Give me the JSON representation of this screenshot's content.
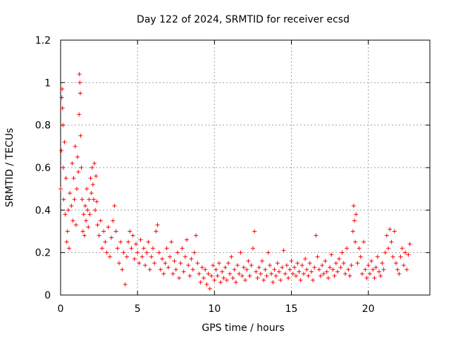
{
  "chart_data": {
    "type": "scatter",
    "title": "Day 122 of 2024, SRMTID for receiver ecsd",
    "xlabel": "GPS time / hours",
    "ylabel": "SRMTID / TECUs",
    "xlim": [
      0,
      24
    ],
    "ylim": [
      0,
      1.2
    ],
    "xticks": [
      {
        "value": 0,
        "label": "0"
      },
      {
        "value": 5,
        "label": "5"
      },
      {
        "value": 10,
        "label": "10"
      },
      {
        "value": 15,
        "label": "15"
      },
      {
        "value": 20,
        "label": "20"
      }
    ],
    "yticks": [
      {
        "value": 0,
        "label": "0"
      },
      {
        "value": 0.2,
        "label": "0.2"
      },
      {
        "value": 0.4,
        "label": "0.4"
      },
      {
        "value": 0.6,
        "label": "0.6"
      },
      {
        "value": 0.8,
        "label": "0.8"
      },
      {
        "value": 1.0,
        "label": "1"
      },
      {
        "value": 1.2,
        "label": "1.2"
      }
    ],
    "grid": true,
    "marker": "+",
    "series": [
      {
        "name": "SRMTID",
        "color": "#ff0000",
        "points": [
          [
            0.0,
            0.5
          ],
          [
            0.05,
            0.68
          ],
          [
            0.08,
            0.93
          ],
          [
            0.1,
            0.97
          ],
          [
            0.12,
            0.88
          ],
          [
            0.15,
            0.8
          ],
          [
            0.18,
            0.6
          ],
          [
            0.2,
            0.45
          ],
          [
            0.25,
            0.72
          ],
          [
            0.3,
            0.38
          ],
          [
            0.35,
            0.55
          ],
          [
            0.4,
            0.25
          ],
          [
            0.45,
            0.3
          ],
          [
            0.5,
            0.4
          ],
          [
            0.55,
            0.22
          ],
          [
            0.6,
            0.48
          ],
          [
            0.7,
            0.42
          ],
          [
            0.75,
            0.62
          ],
          [
            0.8,
            0.35
          ],
          [
            0.85,
            0.55
          ],
          [
            0.9,
            0.45
          ],
          [
            0.95,
            0.7
          ],
          [
            1.0,
            0.33
          ],
          [
            1.05,
            0.5
          ],
          [
            1.1,
            0.65
          ],
          [
            1.15,
            0.58
          ],
          [
            1.2,
            0.85
          ],
          [
            1.22,
            1.04
          ],
          [
            1.25,
            1.0
          ],
          [
            1.28,
            0.95
          ],
          [
            1.3,
            0.75
          ],
          [
            1.35,
            0.6
          ],
          [
            1.4,
            0.45
          ],
          [
            1.45,
            0.3
          ],
          [
            1.5,
            0.38
          ],
          [
            1.55,
            0.28
          ],
          [
            1.6,
            0.42
          ],
          [
            1.65,
            0.35
          ],
          [
            1.7,
            0.5
          ],
          [
            1.75,
            0.4
          ],
          [
            1.8,
            0.32
          ],
          [
            1.85,
            0.45
          ],
          [
            1.9,
            0.38
          ],
          [
            1.95,
            0.55
          ],
          [
            2.0,
            0.48
          ],
          [
            2.05,
            0.6
          ],
          [
            2.1,
            0.52
          ],
          [
            2.15,
            0.45
          ],
          [
            2.2,
            0.62
          ],
          [
            2.25,
            0.4
          ],
          [
            2.3,
            0.56
          ],
          [
            2.35,
            0.44
          ],
          [
            2.4,
            0.33
          ],
          [
            2.5,
            0.28
          ],
          [
            2.6,
            0.35
          ],
          [
            2.7,
            0.22
          ],
          [
            2.8,
            0.3
          ],
          [
            2.9,
            0.25
          ],
          [
            3.0,
            0.2
          ],
          [
            3.1,
            0.32
          ],
          [
            3.2,
            0.18
          ],
          [
            3.3,
            0.27
          ],
          [
            3.4,
            0.35
          ],
          [
            3.5,
            0.42
          ],
          [
            3.6,
            0.3
          ],
          [
            3.7,
            0.22
          ],
          [
            3.8,
            0.15
          ],
          [
            3.9,
            0.25
          ],
          [
            4.0,
            0.12
          ],
          [
            4.1,
            0.2
          ],
          [
            4.2,
            0.05
          ],
          [
            4.3,
            0.18
          ],
          [
            4.4,
            0.25
          ],
          [
            4.5,
            0.3
          ],
          [
            4.6,
            0.22
          ],
          [
            4.7,
            0.28
          ],
          [
            4.8,
            0.17
          ],
          [
            4.9,
            0.24
          ],
          [
            5.0,
            0.2
          ],
          [
            5.1,
            0.15
          ],
          [
            5.2,
            0.26
          ],
          [
            5.3,
            0.18
          ],
          [
            5.4,
            0.22
          ],
          [
            5.5,
            0.14
          ],
          [
            5.6,
            0.2
          ],
          [
            5.7,
            0.25
          ],
          [
            5.8,
            0.12
          ],
          [
            5.9,
            0.18
          ],
          [
            6.0,
            0.22
          ],
          [
            6.1,
            0.15
          ],
          [
            6.2,
            0.3
          ],
          [
            6.3,
            0.33
          ],
          [
            6.4,
            0.2
          ],
          [
            6.5,
            0.12
          ],
          [
            6.6,
            0.17
          ],
          [
            6.7,
            0.1
          ],
          [
            6.8,
            0.15
          ],
          [
            6.9,
            0.22
          ],
          [
            7.0,
            0.13
          ],
          [
            7.1,
            0.18
          ],
          [
            7.2,
            0.25
          ],
          [
            7.3,
            0.1
          ],
          [
            7.4,
            0.16
          ],
          [
            7.5,
            0.12
          ],
          [
            7.6,
            0.2
          ],
          [
            7.7,
            0.08
          ],
          [
            7.8,
            0.15
          ],
          [
            7.9,
            0.22
          ],
          [
            8.0,
            0.11
          ],
          [
            8.1,
            0.18
          ],
          [
            8.2,
            0.26
          ],
          [
            8.3,
            0.14
          ],
          [
            8.4,
            0.09
          ],
          [
            8.5,
            0.17
          ],
          [
            8.6,
            0.12
          ],
          [
            8.7,
            0.2
          ],
          [
            8.8,
            0.28
          ],
          [
            8.9,
            0.15
          ],
          [
            9.0,
            0.1
          ],
          [
            9.1,
            0.06
          ],
          [
            9.2,
            0.13
          ],
          [
            9.3,
            0.08
          ],
          [
            9.4,
            0.12
          ],
          [
            9.5,
            0.05
          ],
          [
            9.6,
            0.1
          ],
          [
            9.7,
            0.03
          ],
          [
            9.8,
            0.09
          ],
          [
            9.9,
            0.14
          ],
          [
            10.0,
            0.07
          ],
          [
            10.1,
            0.12
          ],
          [
            10.2,
            0.09
          ],
          [
            10.3,
            0.15
          ],
          [
            10.4,
            0.06
          ],
          [
            10.5,
            0.11
          ],
          [
            10.6,
            0.08
          ],
          [
            10.7,
            0.13
          ],
          [
            10.8,
            0.07
          ],
          [
            10.9,
            0.15
          ],
          [
            11.0,
            0.1
          ],
          [
            11.1,
            0.18
          ],
          [
            11.2,
            0.08
          ],
          [
            11.3,
            0.12
          ],
          [
            11.4,
            0.06
          ],
          [
            11.5,
            0.14
          ],
          [
            11.6,
            0.1
          ],
          [
            11.7,
            0.2
          ],
          [
            11.8,
            0.09
          ],
          [
            11.9,
            0.13
          ],
          [
            12.0,
            0.07
          ],
          [
            12.1,
            0.12
          ],
          [
            12.2,
            0.16
          ],
          [
            12.3,
            0.09
          ],
          [
            12.4,
            0.14
          ],
          [
            12.5,
            0.22
          ],
          [
            12.6,
            0.3
          ],
          [
            12.7,
            0.11
          ],
          [
            12.8,
            0.08
          ],
          [
            12.9,
            0.13
          ],
          [
            13.0,
            0.1
          ],
          [
            13.1,
            0.16
          ],
          [
            13.2,
            0.07
          ],
          [
            13.3,
            0.12
          ],
          [
            13.4,
            0.09
          ],
          [
            13.5,
            0.2
          ],
          [
            13.6,
            0.14
          ],
          [
            13.7,
            0.1
          ],
          [
            13.8,
            0.06
          ],
          [
            13.9,
            0.12
          ],
          [
            14.0,
            0.09
          ],
          [
            14.1,
            0.15
          ],
          [
            14.2,
            0.11
          ],
          [
            14.3,
            0.07
          ],
          [
            14.4,
            0.13
          ],
          [
            14.5,
            0.21
          ],
          [
            14.6,
            0.1
          ],
          [
            14.7,
            0.14
          ],
          [
            14.8,
            0.08
          ],
          [
            14.9,
            0.12
          ],
          [
            15.0,
            0.16
          ],
          [
            15.1,
            0.1
          ],
          [
            15.2,
            0.13
          ],
          [
            15.3,
            0.09
          ],
          [
            15.4,
            0.15
          ],
          [
            15.5,
            0.11
          ],
          [
            15.6,
            0.07
          ],
          [
            15.7,
            0.14
          ],
          [
            15.8,
            0.1
          ],
          [
            15.9,
            0.17
          ],
          [
            16.0,
            0.12
          ],
          [
            16.1,
            0.09
          ],
          [
            16.2,
            0.15
          ],
          [
            16.3,
            0.11
          ],
          [
            16.4,
            0.07
          ],
          [
            16.5,
            0.13
          ],
          [
            16.6,
            0.28
          ],
          [
            16.7,
            0.18
          ],
          [
            16.8,
            0.12
          ],
          [
            16.9,
            0.09
          ],
          [
            17.0,
            0.14
          ],
          [
            17.1,
            0.1
          ],
          [
            17.2,
            0.16
          ],
          [
            17.3,
            0.11
          ],
          [
            17.4,
            0.08
          ],
          [
            17.5,
            0.13
          ],
          [
            17.6,
            0.19
          ],
          [
            17.7,
            0.12
          ],
          [
            17.8,
            0.09
          ],
          [
            17.9,
            0.15
          ],
          [
            18.0,
            0.11
          ],
          [
            18.1,
            0.17
          ],
          [
            18.2,
            0.13
          ],
          [
            18.3,
            0.2
          ],
          [
            18.4,
            0.15
          ],
          [
            18.5,
            0.1
          ],
          [
            18.6,
            0.22
          ],
          [
            18.7,
            0.12
          ],
          [
            18.8,
            0.09
          ],
          [
            18.9,
            0.14
          ],
          [
            19.0,
            0.3
          ],
          [
            19.05,
            0.42
          ],
          [
            19.1,
            0.35
          ],
          [
            19.15,
            0.25
          ],
          [
            19.2,
            0.38
          ],
          [
            19.3,
            0.15
          ],
          [
            19.4,
            0.22
          ],
          [
            19.5,
            0.18
          ],
          [
            19.6,
            0.1
          ],
          [
            19.7,
            0.25
          ],
          [
            19.8,
            0.12
          ],
          [
            19.9,
            0.08
          ],
          [
            20.0,
            0.14
          ],
          [
            20.1,
            0.1
          ],
          [
            20.2,
            0.16
          ],
          [
            20.3,
            0.12
          ],
          [
            20.4,
            0.08
          ],
          [
            20.5,
            0.13
          ],
          [
            20.6,
            0.18
          ],
          [
            20.7,
            0.11
          ],
          [
            20.8,
            0.09
          ],
          [
            20.9,
            0.15
          ],
          [
            21.0,
            0.12
          ],
          [
            21.1,
            0.2
          ],
          [
            21.2,
            0.28
          ],
          [
            21.3,
            0.22
          ],
          [
            21.4,
            0.31
          ],
          [
            21.5,
            0.25
          ],
          [
            21.6,
            0.18
          ],
          [
            21.7,
            0.3
          ],
          [
            21.8,
            0.15
          ],
          [
            21.9,
            0.12
          ],
          [
            22.0,
            0.1
          ],
          [
            22.1,
            0.18
          ],
          [
            22.2,
            0.22
          ],
          [
            22.3,
            0.14
          ],
          [
            22.4,
            0.2
          ],
          [
            22.5,
            0.12
          ],
          [
            22.6,
            0.19
          ],
          [
            22.7,
            0.24
          ]
        ]
      }
    ]
  }
}
